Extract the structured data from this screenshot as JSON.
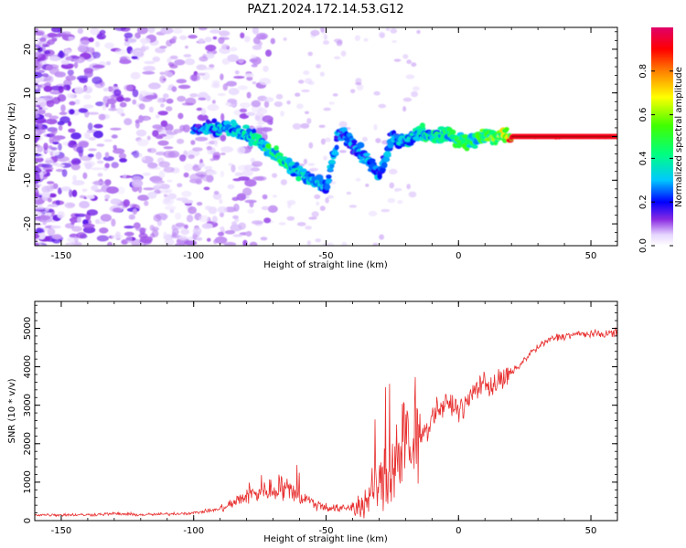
{
  "figure": {
    "title": "PAZ1.2024.172.14.53.G12"
  },
  "chart_data": [
    {
      "type": "heatmap",
      "xlabel": "Height of straight line (km)",
      "ylabel": "Frequency (Hz)",
      "xlim": [
        -160,
        60
      ],
      "ylim": [
        -25,
        25
      ],
      "x_ticks": [
        -150,
        -100,
        -50,
        0,
        50
      ],
      "y_ticks": [
        -20,
        -10,
        0,
        10,
        20
      ],
      "colorbar": {
        "label": "Normalized spectral amplitude",
        "range": [
          0,
          1
        ],
        "ticks": [
          0.0,
          0.2,
          0.4,
          0.6,
          0.8
        ]
      },
      "ridge": {
        "x": [
          -100,
          -95,
          -90,
          -85,
          -80,
          -75,
          -70,
          -65,
          -60,
          -55,
          -50,
          -45,
          -40,
          -35,
          -30,
          -25,
          -20,
          -15,
          -10,
          -5,
          0,
          5,
          10,
          15,
          20,
          30,
          40,
          50,
          60
        ],
        "y": [
          1.5,
          2,
          2,
          1.5,
          0.5,
          -1.5,
          -4,
          -6,
          -8,
          -10,
          -12,
          1,
          -2,
          -5,
          -9,
          0,
          -1,
          1,
          0,
          1,
          -1,
          -1,
          0,
          0,
          0,
          0,
          0,
          0,
          0
        ],
        "amplitude": [
          0.25,
          0.3,
          0.35,
          0.35,
          0.4,
          0.45,
          0.5,
          0.45,
          0.4,
          0.35,
          0.3,
          0.3,
          0.3,
          0.3,
          0.3,
          0.3,
          0.35,
          0.4,
          0.45,
          0.45,
          0.5,
          0.5,
          0.55,
          0.6,
          0.9,
          0.95,
          0.95,
          0.95,
          0.95
        ]
      }
    },
    {
      "type": "line",
      "xlabel": "Height of straight line (km)",
      "ylabel": "SNR (10 * v/v)",
      "xlim": [
        -160,
        60
      ],
      "ylim": [
        0,
        5700
      ],
      "x_ticks": [
        -150,
        -100,
        -50,
        0,
        50
      ],
      "y_ticks": [
        0,
        1000,
        2000,
        3000,
        4000,
        5000
      ],
      "color": "#e83030",
      "series": [
        {
          "x": [
            -160,
            -150,
            -140,
            -130,
            -120,
            -110,
            -100,
            -90,
            -85,
            -80,
            -75,
            -70,
            -65,
            -60,
            -55,
            -50,
            -45,
            -40,
            -35,
            -30,
            -25,
            -22,
            -20,
            -18,
            -15,
            -12,
            -10,
            -8,
            -5,
            -2,
            0,
            3,
            6,
            9,
            12,
            15,
            18,
            21,
            24,
            27,
            30,
            33,
            36,
            40,
            45,
            50,
            55,
            60
          ],
          "values": [
            150,
            150,
            150,
            180,
            150,
            170,
            200,
            300,
            450,
            650,
            750,
            800,
            850,
            650,
            450,
            350,
            300,
            350,
            450,
            900,
            1400,
            1900,
            2100,
            1500,
            2400,
            2300,
            2700,
            2900,
            3000,
            3000,
            2900,
            3000,
            3400,
            3600,
            3500,
            3600,
            3700,
            3900,
            4100,
            4350,
            4500,
            4650,
            4750,
            4800,
            4850,
            4850,
            4850,
            4900
          ]
        }
      ]
    }
  ]
}
